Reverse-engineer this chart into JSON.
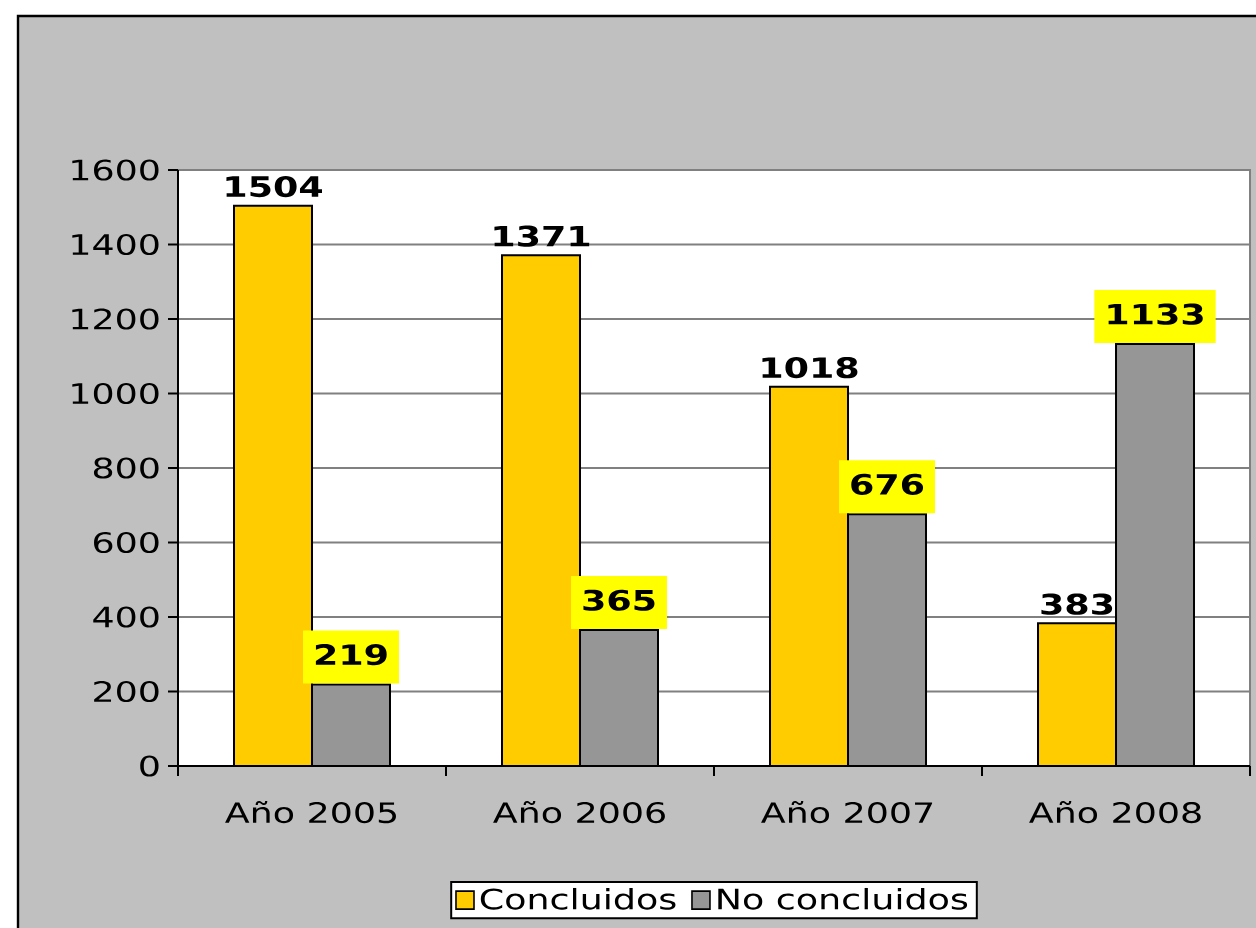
{
  "chart_data": {
    "type": "bar",
    "categories": [
      "Año 2005",
      "Año 2006",
      "Año 2007",
      "Año 2008"
    ],
    "series": [
      {
        "name": "Concluidos",
        "color": "#ffcc00",
        "values": [
          1504,
          1371,
          1018,
          383
        ]
      },
      {
        "name": "No concluidos",
        "color": "#969696",
        "values": [
          219,
          365,
          676,
          1133
        ]
      }
    ],
    "ylim": [
      0,
      1600
    ],
    "yticks": [
      0,
      200,
      400,
      600,
      800,
      1000,
      1200,
      1400,
      1600
    ],
    "grid": "y",
    "legend": "bottom",
    "data_labels": true
  }
}
